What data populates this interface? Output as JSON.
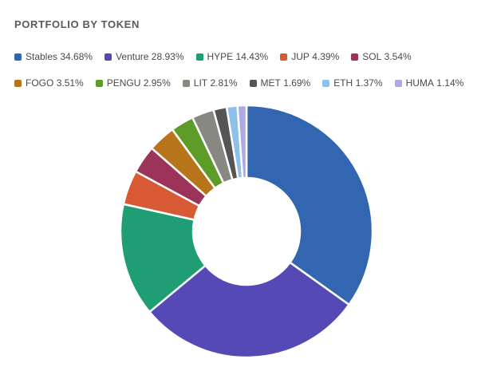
{
  "chart_data": {
    "type": "pie",
    "title": "PORTFOLIO BY TOKEN",
    "donut": true,
    "legend_position": "top-left",
    "categories": [
      "Stables",
      "Venture",
      "HYPE",
      "JUP",
      "SOL",
      "FOGO",
      "PENGU",
      "LIT",
      "MET",
      "ETH",
      "HUMA"
    ],
    "values": [
      34.68,
      28.93,
      14.43,
      4.39,
      3.54,
      3.51,
      2.95,
      2.81,
      1.69,
      1.37,
      1.14
    ],
    "value_labels": [
      "34.68%",
      "28.93%",
      "14.43%",
      "4.39%",
      "3.54%",
      "3.51%",
      "2.95%",
      "2.81%",
      "1.69%",
      "1.37%",
      "1.14%"
    ],
    "colors": [
      "#3366b0",
      "#5549b5",
      "#1f9e75",
      "#d85a34",
      "#9c3358",
      "#b8741a",
      "#5e9c2a",
      "#888882",
      "#555555",
      "#8ec0ea",
      "#aea8e6"
    ]
  }
}
